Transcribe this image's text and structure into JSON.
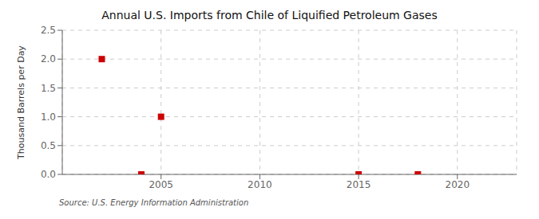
{
  "chart_data": {
    "type": "scatter",
    "title": "Annual U.S. Imports from Chile of Liquified Petroleum Gases",
    "ylabel": "Thousand Barrels per Day",
    "annotations": [
      "Source: U.S. Energy Information Administration"
    ],
    "x": [
      2002,
      2004,
      2005,
      2015,
      2018
    ],
    "values": [
      2.0,
      0.0,
      1.0,
      0.0,
      0.0
    ],
    "color": "#cc0000",
    "marker": "square",
    "xlim": [
      2000,
      2023
    ],
    "ylim": [
      0.0,
      2.5
    ],
    "xticks": [
      2005,
      2010,
      2015,
      2020
    ],
    "yticks": [
      {
        "value": 0.0,
        "label": "0.0"
      },
      0.5,
      {
        "value": 1.0,
        "label": "1.0"
      },
      1.5,
      {
        "value": 2.0,
        "label": "2.0"
      },
      2.5
    ],
    "grid": true
  }
}
